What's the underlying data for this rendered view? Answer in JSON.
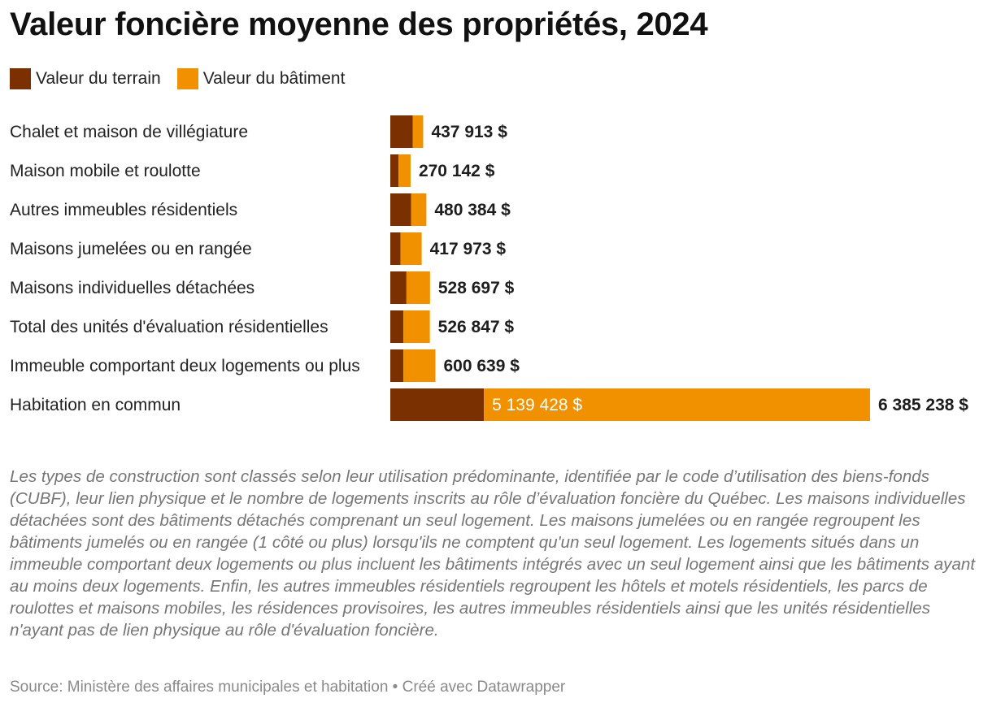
{
  "title": "Valeur foncière moyenne des propriétés, 2024",
  "legend": [
    {
      "label": "Valeur du terrain",
      "color": "#7a3000"
    },
    {
      "label": "Valeur du bâtiment",
      "color": "#f29100"
    }
  ],
  "chart_data": {
    "type": "bar",
    "orientation": "horizontal",
    "stacked": true,
    "categories": [
      "Chalet et maison de villégiature",
      "Maison mobile et roulotte",
      "Autres immeubles résidentiels",
      "Maisons jumelées ou en rangée",
      "Maisons individuelles détachées",
      "Total des unités d'évaluation résidentielles",
      "Immeuble comportant deux logements ou plus",
      "Habitation en commun"
    ],
    "series": [
      {
        "name": "Valeur du terrain",
        "color": "#7a3000",
        "values": [
          300000,
          110000,
          278000,
          135000,
          215000,
          175000,
          175000,
          1245810
        ]
      },
      {
        "name": "Valeur du bâtiment",
        "color": "#f29100",
        "values": [
          137913,
          160142,
          202384,
          282973,
          313697,
          351847,
          425639,
          5139428
        ]
      }
    ],
    "totals": [
      437913,
      270142,
      480384,
      417973,
      528697,
      526847,
      600639,
      6385238
    ],
    "total_labels": [
      "437 913 $",
      "270 142 $",
      "480 384 $",
      "417 973 $",
      "528 697 $",
      "526 847 $",
      "600 639 $",
      "6 385 238 $"
    ],
    "inner_labels": [
      "",
      "",
      "",
      "",
      "",
      "",
      "",
      "5 139 428 $"
    ],
    "xlim": [
      0,
      6385238
    ]
  },
  "note": "Les types de construction sont classés selon leur utilisation prédominante, identifiée par le code d’utilisation des biens-fonds (CUBF), leur lien physique et le nombre de logements inscrits au rôle d’évaluation foncière du Québec. Les maisons individuelles détachées sont des bâtiments détachés comprenant un seul logement. Les maisons jumelées ou en rangée regroupent les bâtiments jumelés ou en rangée (1 côté ou plus) lorsqu'ils ne comptent qu'un seul logement. Les logements situés dans un immeuble comportant deux logements ou plus incluent les bâtiments intégrés avec un seul logement ainsi que les bâtiments ayant au moins deux logements. Enfin, les autres immeubles résidentiels regroupent les hôtels et motels résidentiels, les parcs de roulottes et maisons mobiles, les résidences provisoires, les autres immeubles résidentiels ainsi que les unités résidentielles n'ayant pas de lien physique au rôle d'évaluation foncière.",
  "source": "Source: Ministère des affaires municipales et habitation • Créé avec Datawrapper"
}
